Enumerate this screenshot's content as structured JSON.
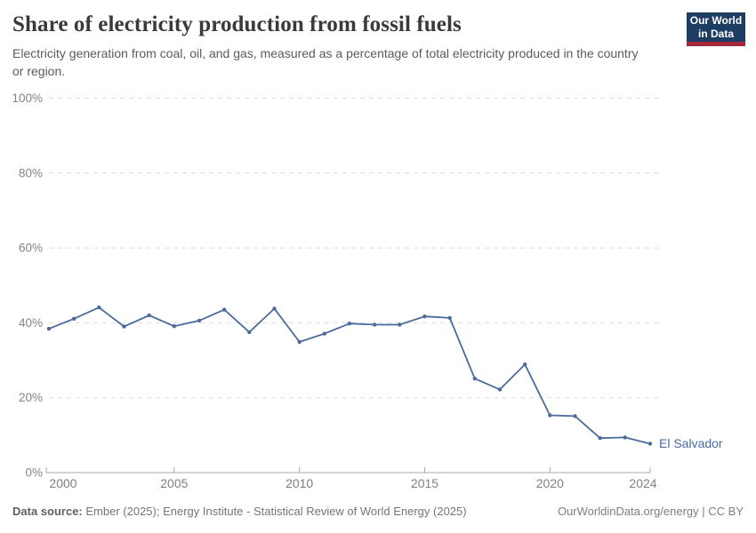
{
  "header": {
    "title": "Share of electricity production from fossil fuels",
    "subtitle": "Electricity generation from coal, oil, and gas, measured as a percentage of total electricity produced in the country or region.",
    "logo": {
      "line1": "Our World",
      "line2": "in Data",
      "bg_color": "#1D3D63",
      "accent_color": "#A52639"
    }
  },
  "chart_data": {
    "type": "line",
    "title": "Share of electricity production from fossil fuels",
    "xlabel": "",
    "ylabel": "",
    "xlim": [
      2000,
      2024
    ],
    "ylim": [
      0,
      100
    ],
    "grid": "horizontal-dashed",
    "legend_position": "end-of-line",
    "x_ticks": [
      2000,
      2005,
      2010,
      2015,
      2020,
      2024
    ],
    "y_ticks": [
      0,
      20,
      40,
      60,
      80,
      100
    ],
    "y_tick_suffix": "%",
    "x": [
      2000,
      2001,
      2002,
      2003,
      2004,
      2005,
      2006,
      2007,
      2008,
      2009,
      2010,
      2011,
      2012,
      2013,
      2014,
      2015,
      2016,
      2017,
      2018,
      2019,
      2020,
      2021,
      2022,
      2023,
      2024
    ],
    "series": [
      {
        "name": "El Salvador",
        "color": "#4C6A9C",
        "values": [
          38.4,
          41.1,
          44.1,
          39.0,
          42.0,
          39.1,
          40.6,
          43.5,
          37.5,
          43.8,
          34.9,
          37.1,
          39.8,
          39.5,
          39.5,
          41.7,
          41.3,
          25.1,
          22.2,
          28.9,
          15.3,
          15.1,
          9.2,
          9.4,
          7.7
        ]
      }
    ],
    "colors": {
      "gridline": "#dcdcdc",
      "axis": "#a8a8a8",
      "tick_label": "#858585"
    }
  },
  "footer": {
    "source_label": "Data source:",
    "source_text": "Ember (2025); Energy Institute - Statistical Review of World Energy (2025)",
    "rights": "OurWorldinData.org/energy | CC BY"
  }
}
